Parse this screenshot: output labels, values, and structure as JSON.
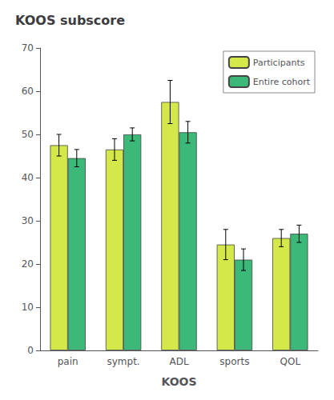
{
  "chart_data": {
    "type": "bar",
    "title": "KOOS subscore",
    "xlabel": "KOOS",
    "categories": [
      "pain",
      "sympt.",
      "ADL",
      "sports",
      "QOL"
    ],
    "series": [
      {
        "name": "Participants",
        "color": "#d4e84a",
        "values": [
          47.5,
          46.5,
          57.5,
          24.5,
          26.0
        ],
        "errors": [
          2.5,
          2.5,
          5.0,
          3.5,
          2.0
        ]
      },
      {
        "name": "Entire cohort",
        "color": "#3cb878",
        "values": [
          44.5,
          50.0,
          50.5,
          21.0,
          27.0
        ],
        "errors": [
          2.0,
          1.5,
          2.5,
          2.5,
          2.0
        ]
      }
    ],
    "ylim": [
      0,
      70
    ],
    "yticks": [
      0,
      10,
      20,
      30,
      40,
      50,
      60,
      70
    ],
    "grid": false,
    "legend": "upper right"
  }
}
